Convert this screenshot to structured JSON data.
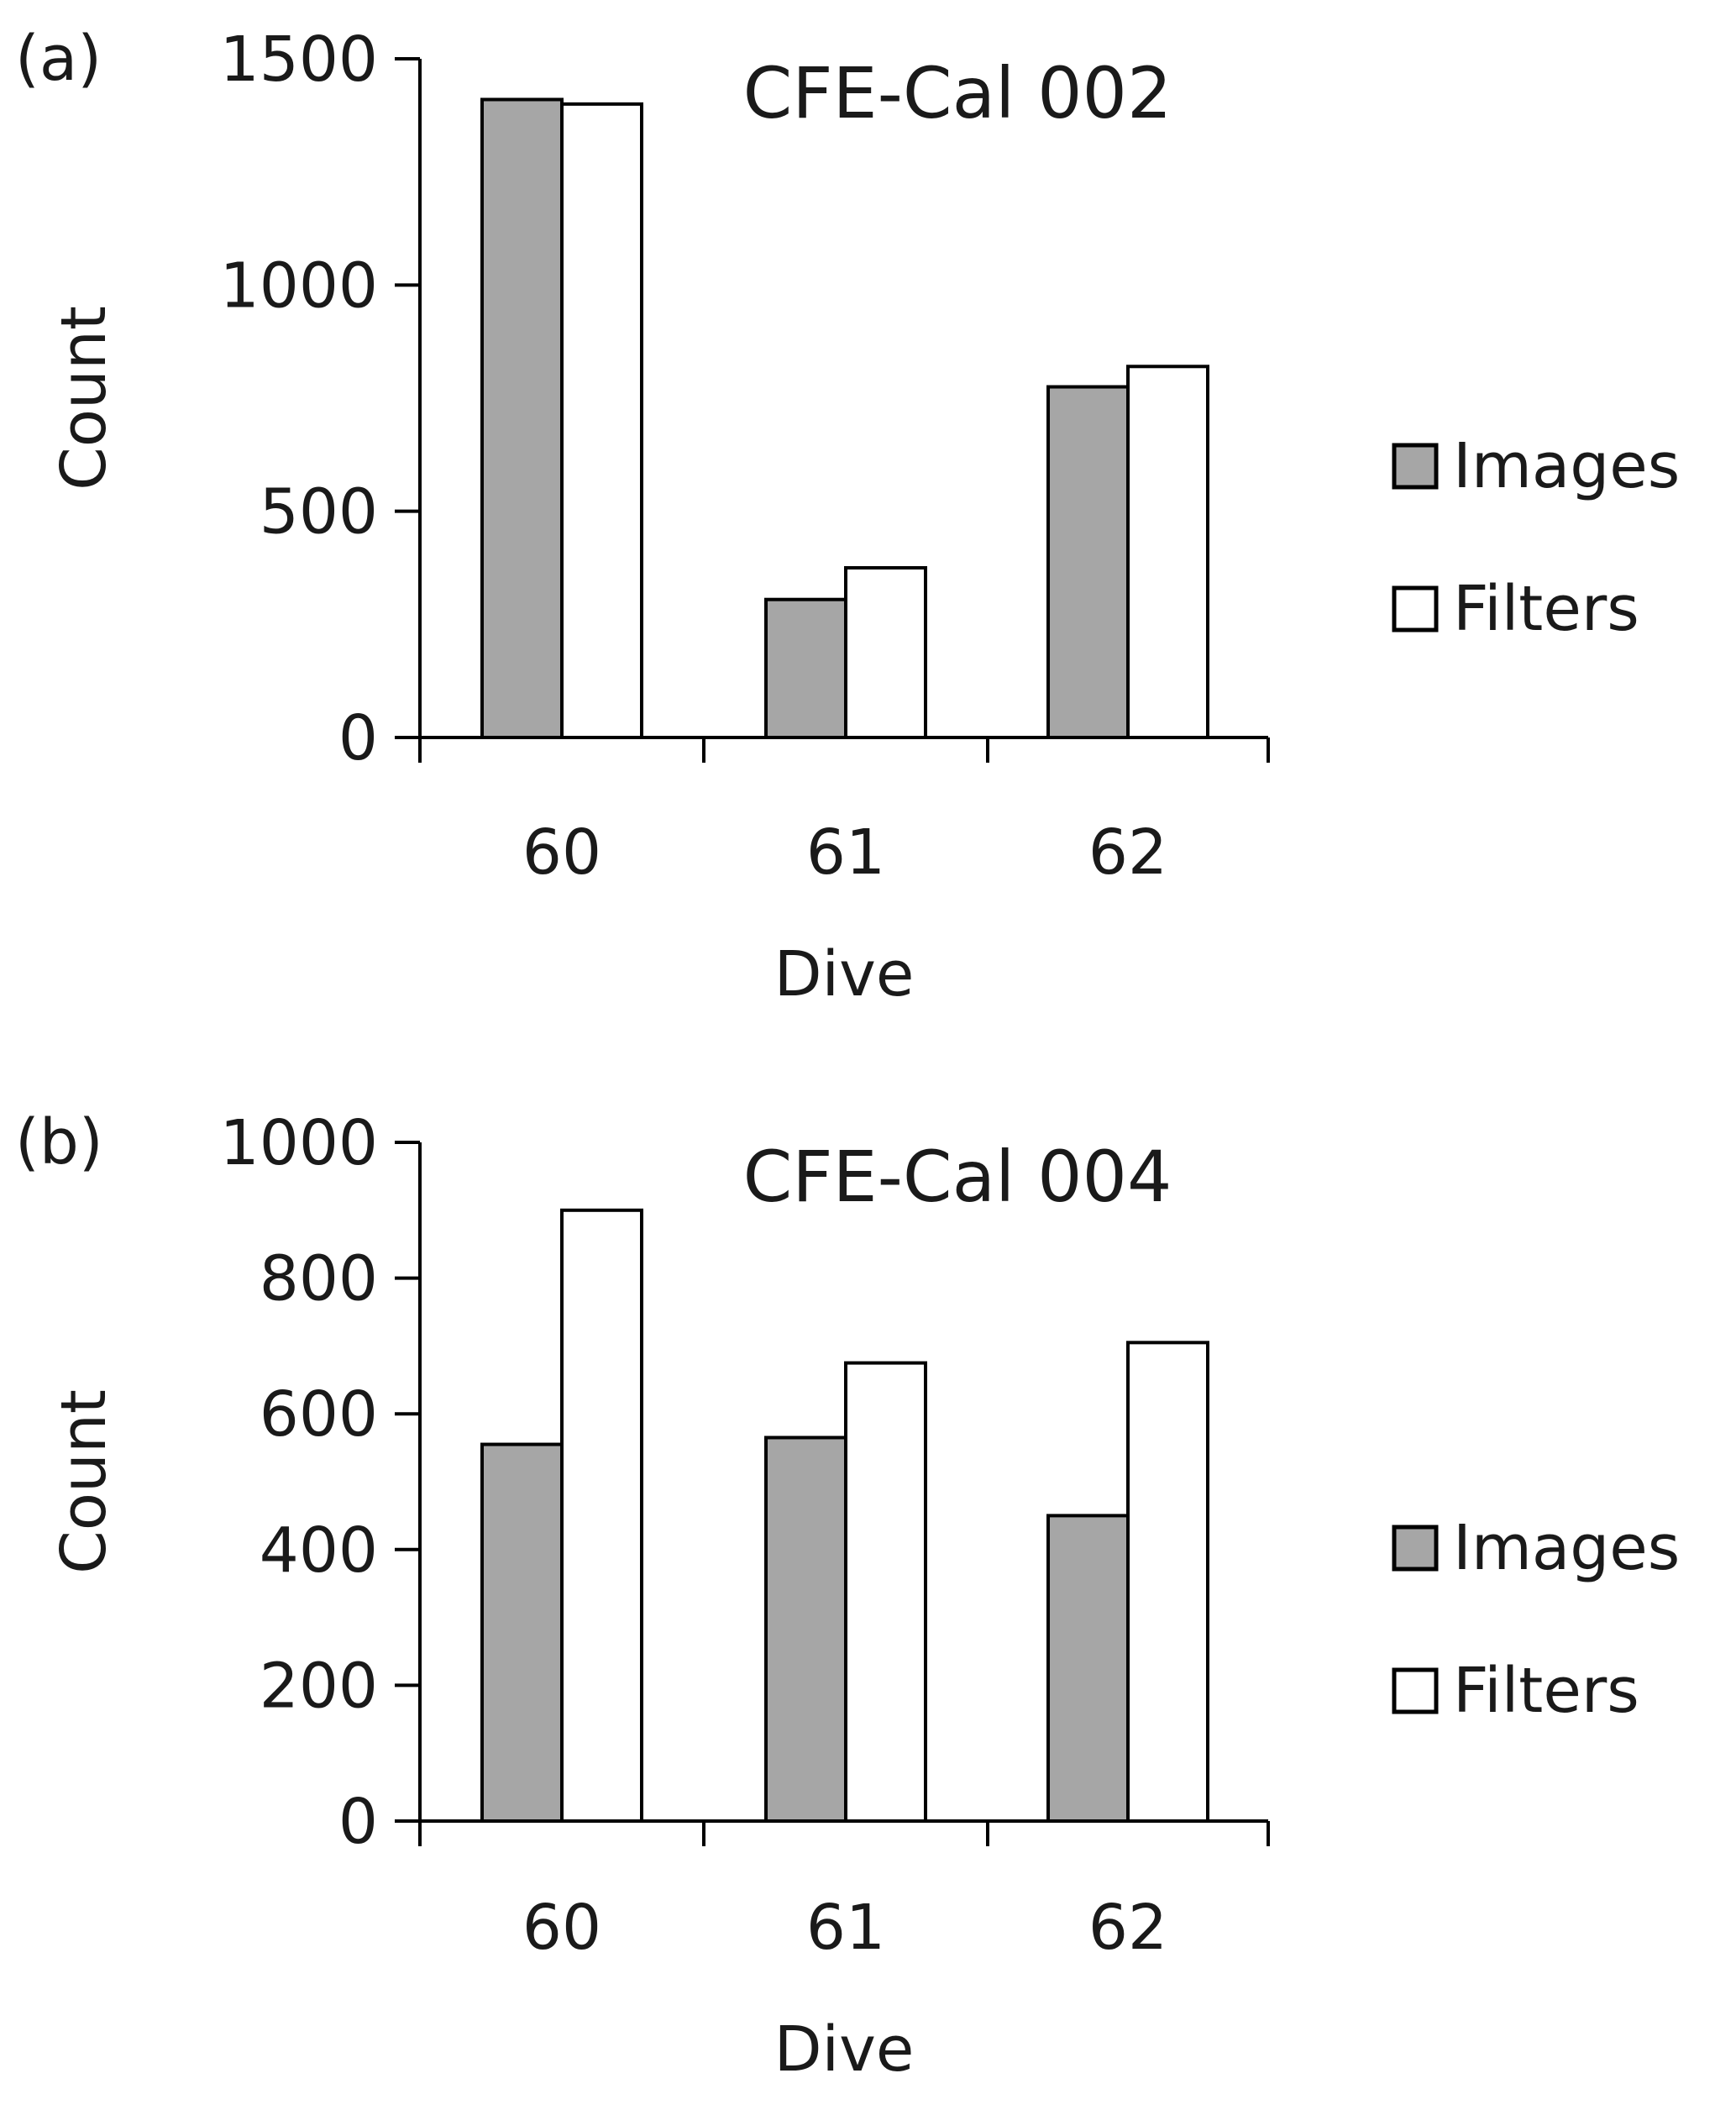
{
  "colors": {
    "images": "#a6a6a6",
    "filters": "#ffffff",
    "stroke": "#000000"
  },
  "chart_data": [
    {
      "type": "bar",
      "panel_label": "(a)",
      "title": "CFE-Cal 002",
      "xlabel": "Dive",
      "ylabel": "Count",
      "ylim": [
        0,
        1500
      ],
      "yticks": [
        "0",
        "500",
        "1000",
        "1500"
      ],
      "yticks_values": [
        0,
        500,
        1000,
        1500
      ],
      "categories": [
        "60",
        "61",
        "62"
      ],
      "series": [
        {
          "name": "Images",
          "values": [
            1410,
            305,
            775
          ]
        },
        {
          "name": "Filters",
          "values": [
            1400,
            375,
            820
          ]
        }
      ],
      "legend_placement": "right",
      "grid": false
    },
    {
      "type": "bar",
      "panel_label": "(b)",
      "title": "CFE-Cal 004",
      "xlabel": "Dive",
      "ylabel": "Count",
      "ylim": [
        0,
        1000
      ],
      "yticks": [
        "0",
        "200",
        "400",
        "600",
        "800",
        "1000"
      ],
      "yticks_values": [
        0,
        200,
        400,
        600,
        800,
        1000
      ],
      "categories": [
        "60",
        "61",
        "62"
      ],
      "series": [
        {
          "name": "Images",
          "values": [
            555,
            565,
            450
          ]
        },
        {
          "name": "Filters",
          "values": [
            900,
            675,
            705
          ]
        }
      ],
      "legend_placement": "right",
      "grid": false
    }
  ]
}
